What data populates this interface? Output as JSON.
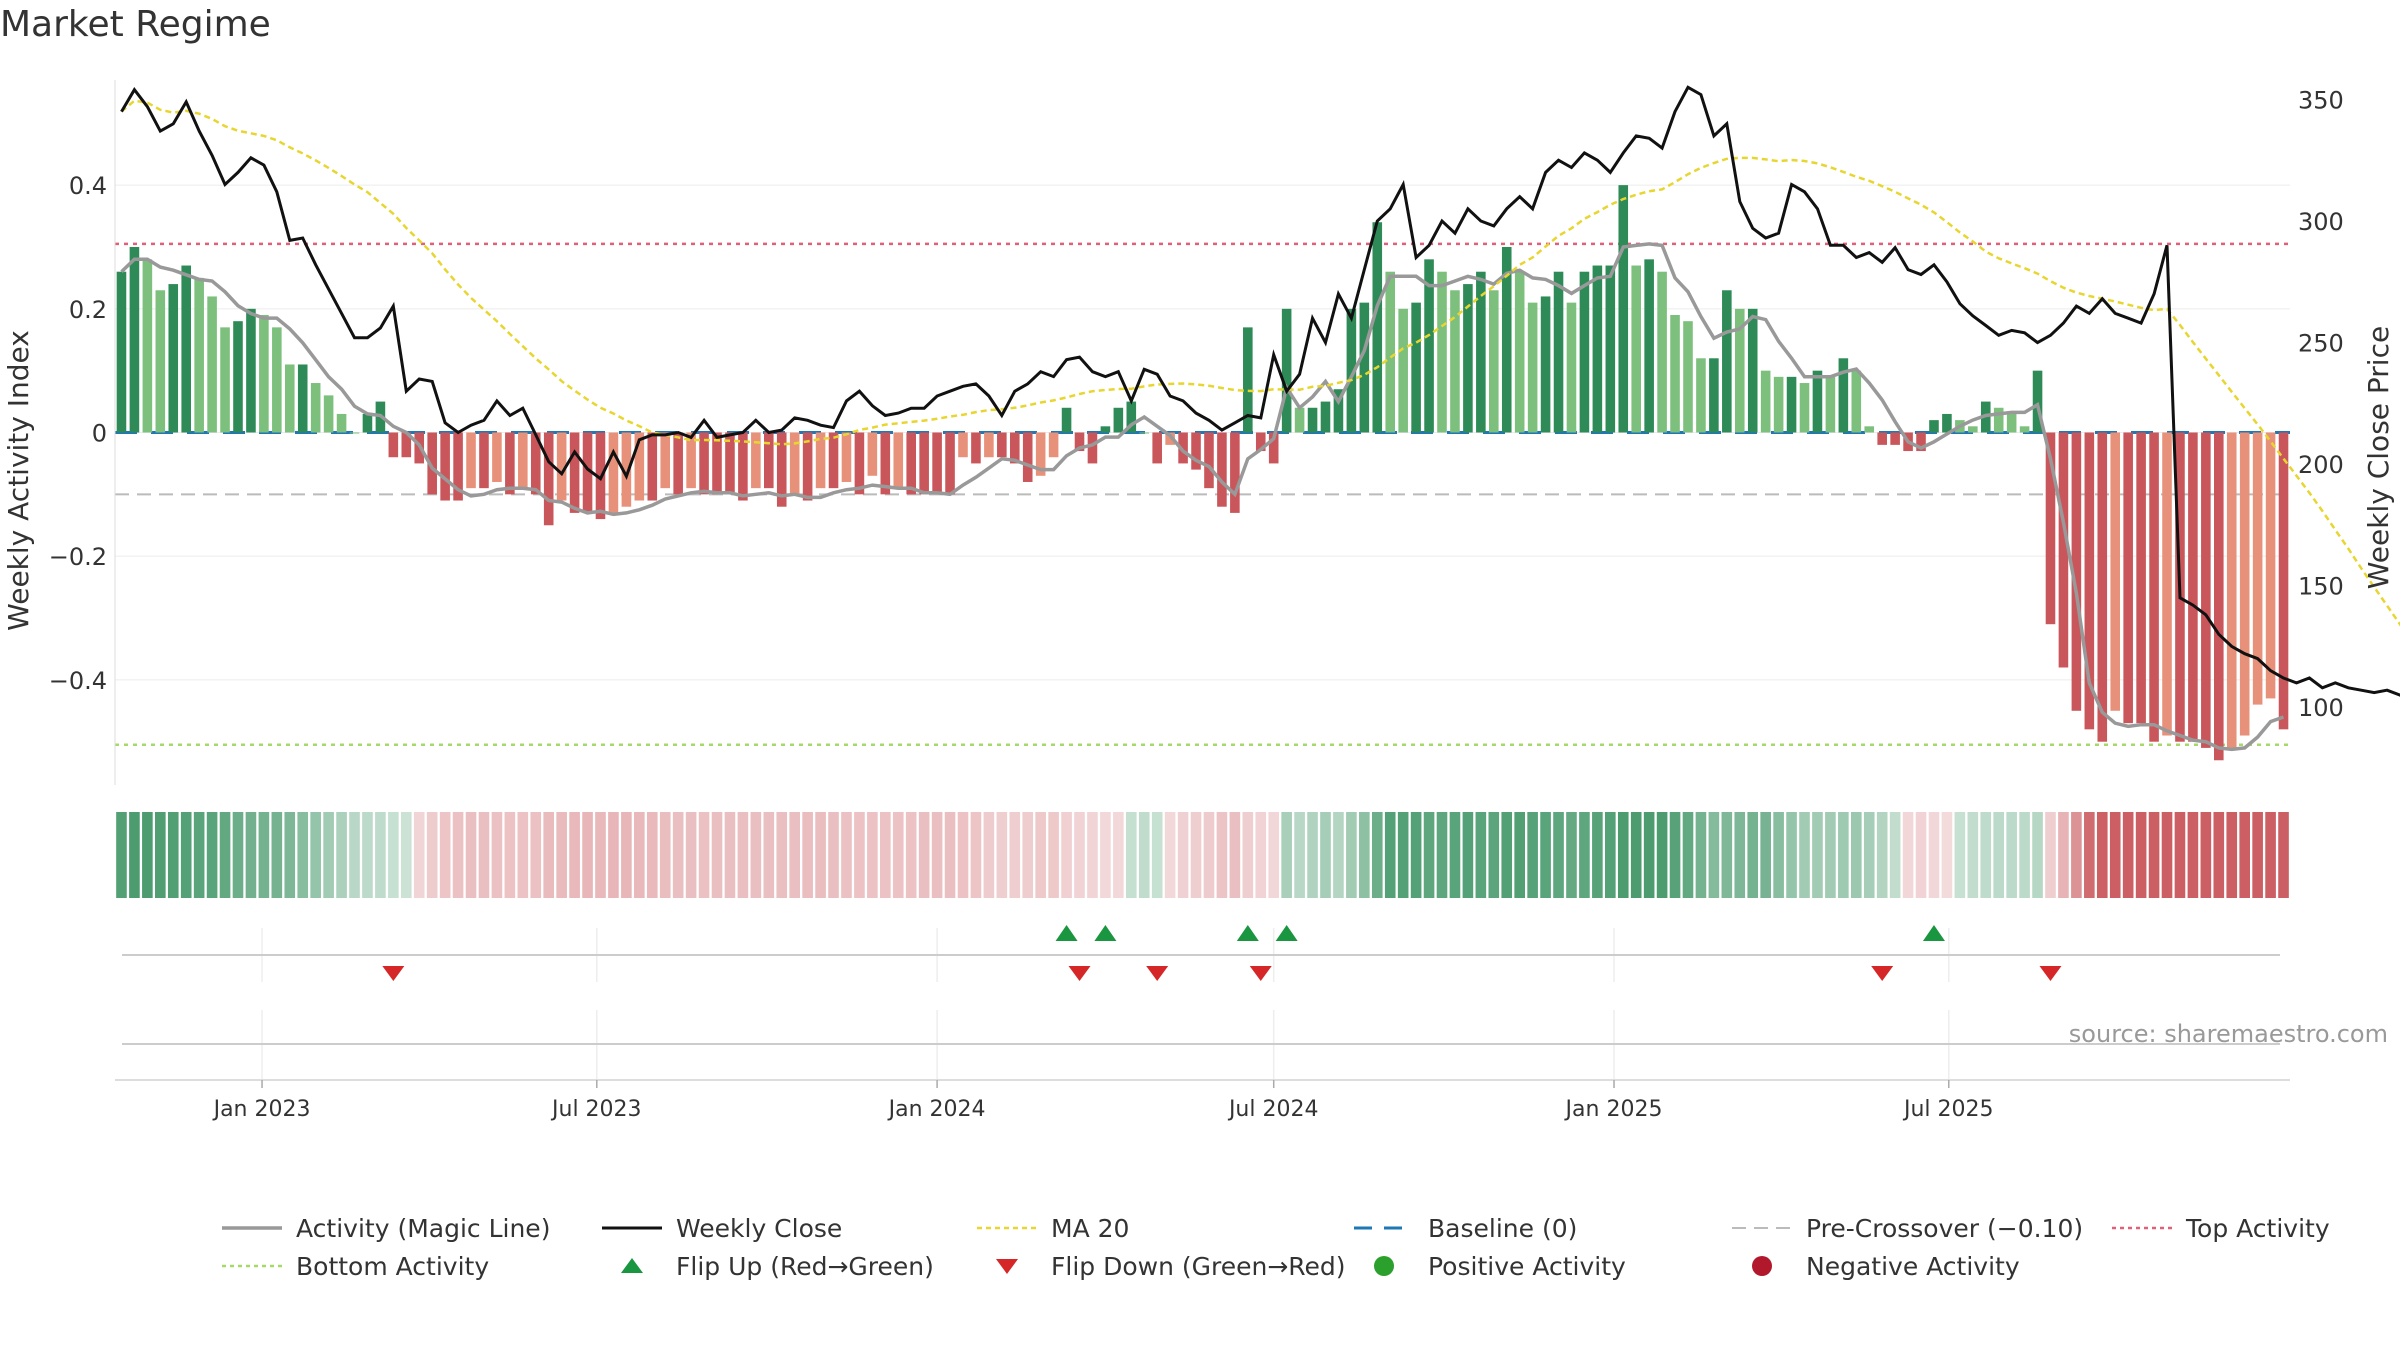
{
  "title": "Market Regime",
  "source": "source: sharemaestro.com",
  "left_axis": {
    "label": "Weekly Activity Index",
    "ylim": [
      -0.57,
      0.57
    ],
    "ticks": [
      {
        "v": 0.4,
        "label": "0.4"
      },
      {
        "v": 0.2,
        "label": "0.2"
      },
      {
        "v": 0,
        "label": "0"
      },
      {
        "v": -0.2,
        "label": "−0.2"
      },
      {
        "v": -0.4,
        "label": "−0.4"
      }
    ]
  },
  "right_axis": {
    "label": "Weekly Close Price",
    "ylim": [
      68,
      358
    ],
    "ticks": [
      {
        "v": 350,
        "label": "350"
      },
      {
        "v": 300,
        "label": "300"
      },
      {
        "v": 250,
        "label": "250"
      },
      {
        "v": 200,
        "label": "200"
      },
      {
        "v": 150,
        "label": "150"
      },
      {
        "v": 100,
        "label": "100"
      }
    ]
  },
  "x_ticks": [
    "Jan 2023",
    "Jul 2023",
    "Jan 2024",
    "Jul 2024",
    "Jan 2025",
    "Jul 2025"
  ],
  "colors": {
    "pos_dark": "#2e8b57",
    "pos_light": "#7dbf7d",
    "neg_dark": "#c9565b",
    "neg_light": "#e8917a",
    "magic": "#999999",
    "close": "#111111",
    "ma20": "#e8d630",
    "baseline": "#1f77b4",
    "precross": "#bbbbbb",
    "top": "#e0607a",
    "bottom": "#a6d96a",
    "flip_up": "#1a9641",
    "flip_down": "#d62728",
    "pos_dot": "#2ca02c",
    "neg_dot": "#b2182b"
  },
  "legend": [
    {
      "key": "magic",
      "label": "Activity (Magic Line)"
    },
    {
      "key": "close",
      "label": "Weekly Close"
    },
    {
      "key": "ma20",
      "label": "MA 20"
    },
    {
      "key": "baseline",
      "label": "Baseline (0)"
    },
    {
      "key": "precross",
      "label": "Pre-Crossover (−0.10)"
    },
    {
      "key": "top",
      "label": "Top Activity"
    },
    {
      "key": "bottom",
      "label": "Bottom Activity"
    },
    {
      "key": "flip_up",
      "label": "Flip Up (Red→Green)"
    },
    {
      "key": "flip_down",
      "label": "Flip Down (Green→Red)"
    },
    {
      "key": "pos_dot",
      "label": "Positive Activity"
    },
    {
      "key": "neg_dot",
      "label": "Negative Activity"
    }
  ],
  "chart_data": {
    "type": "bar",
    "frequency": "weekly",
    "start_week": "2022-10-17",
    "reference_lines": {
      "baseline": 0,
      "pre_crossover": -0.1,
      "top_activity": 0.305,
      "bottom_activity": -0.505
    },
    "activity": [
      0.26,
      0.3,
      0.28,
      0.23,
      0.24,
      0.27,
      0.25,
      0.22,
      0.17,
      0.18,
      0.2,
      0.19,
      0.17,
      0.11,
      0.11,
      0.08,
      0.06,
      0.03,
      0.0,
      0.03,
      0.05,
      -0.04,
      -0.04,
      -0.05,
      -0.1,
      -0.11,
      -0.11,
      -0.09,
      -0.09,
      -0.08,
      -0.1,
      -0.09,
      -0.1,
      -0.15,
      -0.11,
      -0.13,
      -0.13,
      -0.14,
      -0.13,
      -0.12,
      -0.11,
      -0.11,
      -0.09,
      -0.1,
      -0.09,
      -0.1,
      -0.1,
      -0.1,
      -0.11,
      -0.09,
      -0.09,
      -0.12,
      -0.1,
      -0.11,
      -0.09,
      -0.09,
      -0.08,
      -0.1,
      -0.07,
      -0.1,
      -0.09,
      -0.1,
      -0.1,
      -0.1,
      -0.1,
      -0.04,
      -0.05,
      -0.04,
      -0.04,
      -0.05,
      -0.08,
      -0.07,
      -0.04,
      0.04,
      -0.03,
      -0.05,
      0.01,
      0.04,
      0.05,
      0.0,
      -0.05,
      -0.02,
      -0.05,
      -0.06,
      -0.09,
      -0.12,
      -0.13,
      0.17,
      -0.03,
      -0.05,
      0.2,
      0.04,
      0.04,
      0.05,
      0.07,
      0.2,
      0.21,
      0.34,
      0.26,
      0.2,
      0.21,
      0.28,
      0.26,
      0.23,
      0.24,
      0.26,
      0.23,
      0.3,
      0.26,
      0.21,
      0.22,
      0.26,
      0.21,
      0.26,
      0.27,
      0.27,
      0.4,
      0.27,
      0.28,
      0.26,
      0.19,
      0.18,
      0.12,
      0.12,
      0.23,
      0.2,
      0.2,
      0.1,
      0.09,
      0.09,
      0.08,
      0.1,
      0.09,
      0.12,
      0.1,
      0.01,
      -0.02,
      -0.02,
      -0.03,
      -0.03,
      0.02,
      0.03,
      0.02,
      0.01,
      0.05,
      0.04,
      0.03,
      0.01,
      0.1,
      -0.31,
      -0.38,
      -0.45,
      -0.48,
      -0.5,
      -0.45,
      -0.47,
      -0.47,
      -0.5,
      -0.49,
      -0.5,
      -0.5,
      -0.51,
      -0.53,
      -0.51,
      -0.49,
      -0.44,
      -0.43,
      -0.48
    ],
    "weekly_close": [
      345,
      354,
      347,
      337,
      340,
      349,
      337,
      327,
      315,
      320,
      326,
      323,
      312,
      292,
      293,
      282,
      272,
      262,
      252,
      252,
      256,
      265,
      230,
      235,
      234,
      217,
      213,
      216,
      218,
      226,
      220,
      223,
      212,
      201,
      196,
      205,
      198,
      194,
      205,
      195,
      210,
      212,
      212,
      213,
      211,
      218,
      211,
      212,
      213,
      218,
      213,
      214,
      219,
      218,
      216,
      215,
      226,
      230,
      224,
      220,
      221,
      223,
      223,
      228,
      230,
      232,
      233,
      228,
      220,
      230,
      233,
      238,
      236,
      243,
      244,
      238,
      236,
      238,
      226,
      239,
      237,
      228,
      226,
      221,
      218,
      214,
      217,
      220,
      219,
      245,
      230,
      237,
      260,
      250,
      270,
      260,
      280,
      300,
      305,
      315,
      285,
      290,
      300,
      295,
      305,
      300,
      298,
      305,
      310,
      305,
      320,
      325,
      322,
      328,
      325,
      320,
      328,
      335,
      334,
      330,
      345,
      355,
      352,
      335,
      340,
      308,
      297,
      293,
      295,
      315,
      312,
      305,
      290,
      290,
      285,
      287,
      283,
      289,
      280,
      278,
      282,
      275,
      266,
      261,
      257,
      253,
      255,
      254,
      250,
      253,
      258,
      265,
      262,
      268,
      262,
      260,
      258,
      270,
      290,
      145,
      142,
      138,
      130,
      125,
      122,
      120,
      115,
      112,
      110,
      112,
      108,
      110,
      108,
      107,
      106,
      107,
      105,
      102,
      104
    ]
  }
}
